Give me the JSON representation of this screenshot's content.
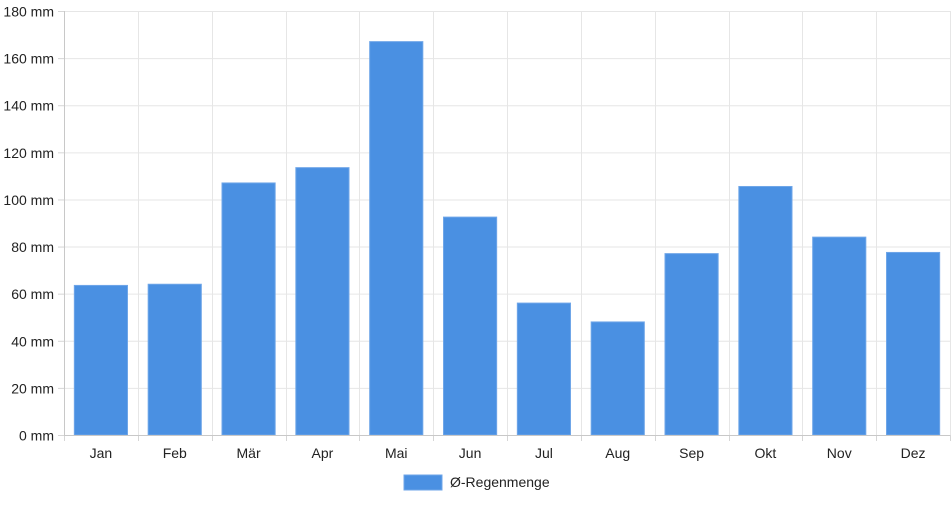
{
  "chart_data": {
    "type": "bar",
    "categories": [
      "Jan",
      "Feb",
      "Mär",
      "Apr",
      "Mai",
      "Jun",
      "Jul",
      "Aug",
      "Sep",
      "Okt",
      "Nov",
      "Dez"
    ],
    "series": [
      {
        "name": "Ø-Regenmenge",
        "values": [
          63.5,
          64,
          107,
          113.5,
          167,
          92.5,
          56,
          48,
          77,
          105.5,
          84,
          77.5
        ],
        "color": "#4a90e2"
      }
    ],
    "ylim": [
      0,
      180
    ],
    "yticks": [
      0,
      20,
      40,
      60,
      80,
      100,
      120,
      140,
      160,
      180
    ],
    "ytick_suffix": " mm",
    "grid": true,
    "legend": "bottom-center"
  }
}
